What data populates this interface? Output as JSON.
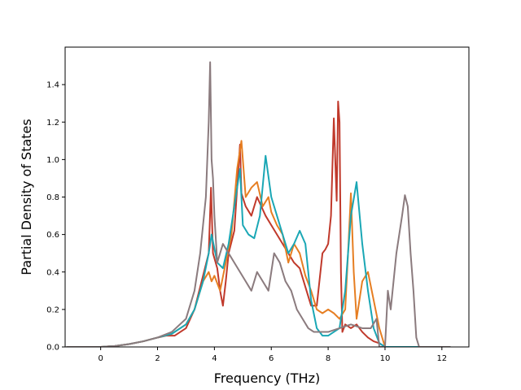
{
  "chart_data": {
    "type": "line",
    "title": "",
    "xlabel": "Frequency (THz)",
    "ylabel": "Partial Density of States",
    "xlim": [
      -1.25,
      12.95
    ],
    "ylim": [
      0.0,
      1.6
    ],
    "xticks": [
      0,
      2,
      4,
      6,
      8,
      10,
      12
    ],
    "xtick_labels": [
      "0",
      "2",
      "4",
      "6",
      "8",
      "10",
      "12"
    ],
    "yticks": [
      0.0,
      0.2,
      0.4,
      0.6,
      0.8,
      1.0,
      1.2,
      1.4
    ],
    "ytick_labels": [
      "0.0",
      "0.2",
      "0.4",
      "0.6",
      "0.8",
      "1.0",
      "1.2",
      "1.4"
    ],
    "grid": false,
    "legend": "none",
    "series": [
      {
        "color": "#c0392b",
        "x": [
          -1.2,
          0.0,
          0.5,
          1.0,
          1.5,
          2.0,
          2.3,
          2.6,
          3.0,
          3.3,
          3.6,
          3.8,
          3.88,
          3.95,
          4.1,
          4.2,
          4.3,
          4.4,
          4.5,
          4.7,
          4.9,
          4.95,
          5.1,
          5.3,
          5.5,
          5.8,
          6.0,
          6.2,
          6.4,
          6.6,
          6.8,
          7.0,
          7.2,
          7.4,
          7.6,
          7.8,
          7.9,
          8.0,
          8.1,
          8.2,
          8.3,
          8.35,
          8.4,
          8.45,
          8.5,
          8.6,
          8.8,
          9.0,
          9.2,
          9.4,
          9.6,
          9.8,
          10.0,
          10.5,
          11.0,
          11.5,
          12.0,
          12.3
        ],
        "y": [
          0.0,
          0.0,
          0.005,
          0.015,
          0.03,
          0.05,
          0.06,
          0.06,
          0.1,
          0.2,
          0.38,
          0.5,
          0.85,
          0.5,
          0.42,
          0.3,
          0.22,
          0.35,
          0.5,
          0.62,
          1.08,
          0.82,
          0.75,
          0.7,
          0.8,
          0.7,
          0.65,
          0.6,
          0.55,
          0.5,
          0.45,
          0.42,
          0.32,
          0.22,
          0.22,
          0.5,
          0.52,
          0.55,
          0.7,
          1.22,
          0.78,
          1.31,
          1.2,
          0.4,
          0.08,
          0.12,
          0.1,
          0.12,
          0.08,
          0.05,
          0.03,
          0.02,
          0.0,
          0.0,
          0.0,
          0.0,
          0.0,
          0.0
        ]
      },
      {
        "color": "#e67e22",
        "x": [
          -1.2,
          0.0,
          0.5,
          1.0,
          1.5,
          2.0,
          2.5,
          3.0,
          3.3,
          3.6,
          3.8,
          3.9,
          4.0,
          4.2,
          4.4,
          4.6,
          4.8,
          4.95,
          5.1,
          5.3,
          5.5,
          5.7,
          5.9,
          6.0,
          6.2,
          6.4,
          6.6,
          6.8,
          7.0,
          7.2,
          7.4,
          7.6,
          7.8,
          8.0,
          8.2,
          8.4,
          8.6,
          8.7,
          8.8,
          8.9,
          9.0,
          9.2,
          9.4,
          9.6,
          9.8,
          10.0,
          10.5,
          11.0,
          11.5,
          12.0,
          12.3
        ],
        "y": [
          0.0,
          0.0,
          0.005,
          0.015,
          0.03,
          0.05,
          0.07,
          0.12,
          0.2,
          0.35,
          0.4,
          0.35,
          0.38,
          0.3,
          0.45,
          0.6,
          0.95,
          1.1,
          0.8,
          0.85,
          0.88,
          0.75,
          0.8,
          0.72,
          0.65,
          0.6,
          0.45,
          0.55,
          0.5,
          0.38,
          0.3,
          0.2,
          0.18,
          0.2,
          0.18,
          0.15,
          0.2,
          0.5,
          0.82,
          0.4,
          0.15,
          0.35,
          0.4,
          0.25,
          0.1,
          0.0,
          0.0,
          0.0,
          0.0,
          0.0,
          0.0
        ]
      },
      {
        "color": "#1aa7b5",
        "x": [
          -1.2,
          0.0,
          0.5,
          1.0,
          1.5,
          2.0,
          2.5,
          3.0,
          3.3,
          3.6,
          3.8,
          3.9,
          4.1,
          4.3,
          4.5,
          4.7,
          4.9,
          5.0,
          5.2,
          5.4,
          5.6,
          5.8,
          6.0,
          6.2,
          6.4,
          6.6,
          6.8,
          7.0,
          7.2,
          7.4,
          7.6,
          7.8,
          8.0,
          8.2,
          8.4,
          8.6,
          8.8,
          9.0,
          9.2,
          9.4,
          9.6,
          9.8,
          10.0,
          10.5,
          11.0,
          11.5,
          12.0,
          12.3
        ],
        "y": [
          0.0,
          0.0,
          0.005,
          0.015,
          0.03,
          0.05,
          0.07,
          0.12,
          0.2,
          0.35,
          0.5,
          0.6,
          0.45,
          0.42,
          0.55,
          0.75,
          0.95,
          0.65,
          0.6,
          0.58,
          0.7,
          1.02,
          0.8,
          0.7,
          0.6,
          0.5,
          0.55,
          0.62,
          0.55,
          0.25,
          0.1,
          0.06,
          0.06,
          0.08,
          0.1,
          0.3,
          0.7,
          0.88,
          0.55,
          0.3,
          0.1,
          0.02,
          0.0,
          0.0,
          0.0,
          0.0,
          0.0,
          0.0
        ]
      },
      {
        "color": "#8b7b7e",
        "x": [
          -1.2,
          0.0,
          0.5,
          1.0,
          1.5,
          2.0,
          2.5,
          3.0,
          3.3,
          3.5,
          3.7,
          3.8,
          3.85,
          3.9,
          3.95,
          4.0,
          4.1,
          4.3,
          4.5,
          4.7,
          4.9,
          5.1,
          5.3,
          5.5,
          5.7,
          5.9,
          6.1,
          6.3,
          6.5,
          6.7,
          6.9,
          7.1,
          7.3,
          7.5,
          7.7,
          8.0,
          8.4,
          8.8,
          9.2,
          9.5,
          9.7,
          9.8,
          9.9,
          10.0,
          10.1,
          10.2,
          10.4,
          10.6,
          10.7,
          10.8,
          10.9,
          11.0,
          11.1,
          11.2,
          11.5,
          12.0,
          12.3
        ],
        "y": [
          0.0,
          0.0,
          0.005,
          0.015,
          0.03,
          0.05,
          0.08,
          0.15,
          0.3,
          0.5,
          0.8,
          1.2,
          1.52,
          1.0,
          0.9,
          0.7,
          0.45,
          0.55,
          0.5,
          0.45,
          0.4,
          0.35,
          0.3,
          0.4,
          0.35,
          0.3,
          0.5,
          0.45,
          0.35,
          0.3,
          0.2,
          0.15,
          0.1,
          0.08,
          0.08,
          0.08,
          0.1,
          0.12,
          0.1,
          0.1,
          0.15,
          0.0,
          0.0,
          0.0,
          0.3,
          0.2,
          0.5,
          0.7,
          0.81,
          0.75,
          0.5,
          0.3,
          0.05,
          0.0,
          0.0,
          0.0,
          0.0
        ]
      }
    ]
  }
}
